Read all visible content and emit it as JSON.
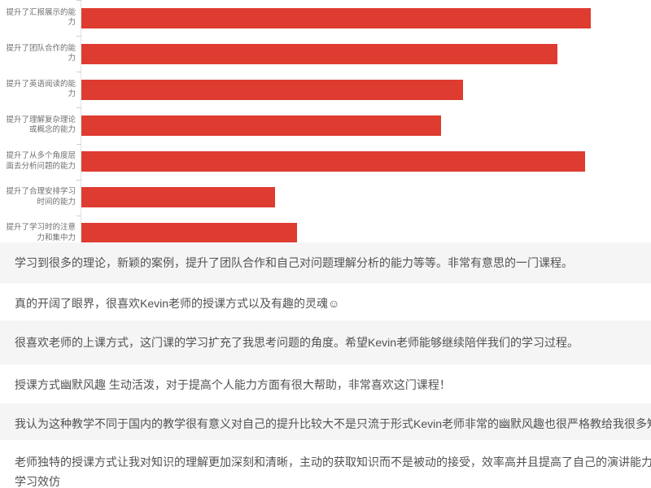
{
  "chart_data": {
    "type": "bar",
    "orientation": "horizontal",
    "title": "",
    "xlabel": "",
    "ylabel": "",
    "categories": [
      "提升了汇报展示的能力",
      "提升了团队合作的能力",
      "提升了英语阅读的能力",
      "提升了理解复杂理论或概念的能力",
      "提升了从多个角度层面去分析问题的能力",
      "提升了合理安排学习时间的能力",
      "提升了学习时的注意力和集中力"
    ],
    "values": [
      92,
      86,
      69,
      65,
      91,
      35,
      39
    ],
    "xlim": [
      0,
      100
    ],
    "axis_tick_labels_visible": false,
    "grid": false,
    "legend": false,
    "bar_color": "#de3b31",
    "axis_color": "#e3e3e3"
  },
  "comments": [
    "学习到很多的理论，新颖的案例，提升了团队合作和自己对问题理解分析的能力等等。非常有意思的一门课程。",
    "真的开阔了眼界，很喜欢Kevin老师的授课方式以及有趣的灵魂☺",
    "很喜欢老师的上课方式，这门课的学习扩充了我思考问题的角度。希望Kevin老师能够继续陪伴我们的学习过程。",
    "授课方式幽默风趣 生动活泼，对于提高个人能力方面有很大帮助，非常喜欢这门课程！",
    "我认为这种教学不同于国内的教学很有意义对自己的提升比较大不是只流于形式Kevin老师非常的幽默风趣也很严格教给我很多知识",
    "老师独特的授课方式让我对知识的理解更加深刻和清晰，主动的获取知识而不是被动的接受，效率高并且提高了自己的演讲能力，希望这种方\n学习效仿"
  ]
}
